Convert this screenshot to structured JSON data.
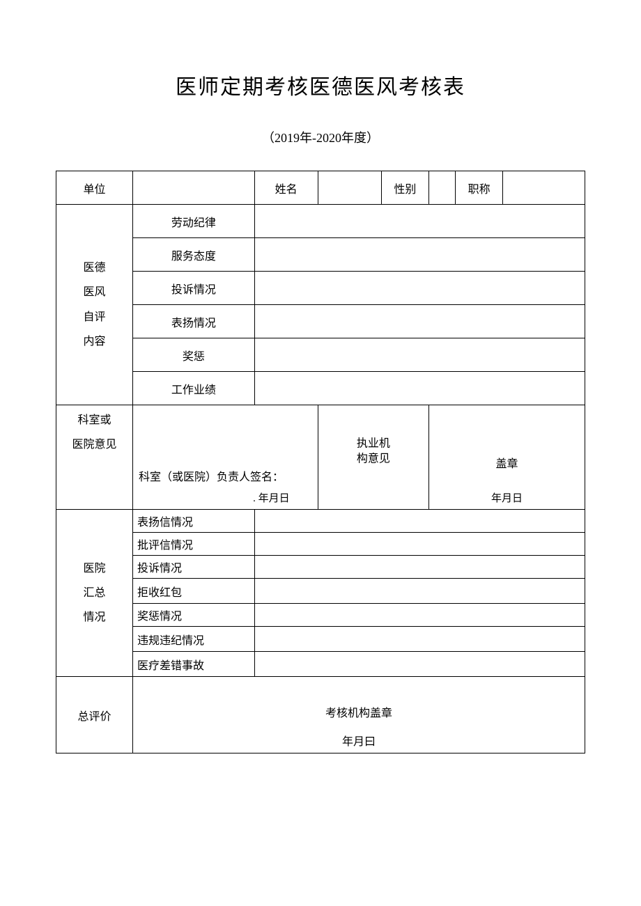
{
  "title": "医师定期考核医德医风考核表",
  "subtitle": "（2019年-2020年度）",
  "header_row": {
    "unit_label": "单位",
    "unit_value": "",
    "name_label": "姓名",
    "name_value": "",
    "gender_label": "性别",
    "gender_value": "",
    "title_label": "职称",
    "title_value": ""
  },
  "self_eval": {
    "section_label": "医德\n医风\n自评\n内容",
    "items": [
      {
        "label": "劳动纪律",
        "value": ""
      },
      {
        "label": "服务态度",
        "value": ""
      },
      {
        "label": "投诉情况",
        "value": ""
      },
      {
        "label": "表扬情况",
        "value": ""
      },
      {
        "label": "奖惩",
        "value": ""
      },
      {
        "label": "工作业绩",
        "value": ""
      }
    ]
  },
  "dept_opinion": {
    "label": "科室或\n医院意见",
    "signature_line": "科室（或医院）负责人签名：",
    "date_text": ". 年月日",
    "exec_label": "执业机\n构意见",
    "stamp_text": "盖章",
    "exec_date": "年月日"
  },
  "hospital_summary": {
    "section_label": "医院\n汇总\n情况",
    "items": [
      {
        "label": "表扬信情况",
        "value": ""
      },
      {
        "label": "批评信情况",
        "value": ""
      },
      {
        "label": "投诉情况",
        "value": ""
      },
      {
        "label": "拒收红包",
        "value": ""
      },
      {
        "label": "奖惩情况",
        "value": ""
      },
      {
        "label": "违规违纪情况",
        "value": ""
      },
      {
        "label": "医疗差错事故",
        "value": ""
      }
    ]
  },
  "final": {
    "label": "总评价",
    "stamp_text": "考核机构盖章",
    "date_text": "年月曰"
  },
  "colors": {
    "border": "#000000",
    "bg": "#ffffff",
    "text": "#000000"
  }
}
